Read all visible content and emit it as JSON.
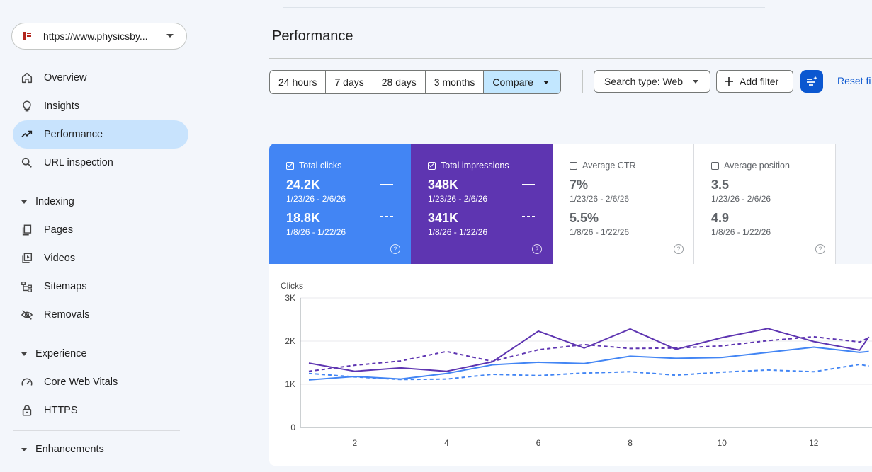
{
  "property": {
    "url": "https://www.physicsby..."
  },
  "nav": {
    "items": [
      {
        "label": "Overview",
        "icon": "home-icon"
      },
      {
        "label": "Insights",
        "icon": "lightbulb-icon"
      },
      {
        "label": "Performance",
        "icon": "trending-up-icon",
        "active": true
      },
      {
        "label": "URL inspection",
        "icon": "search-icon"
      }
    ],
    "indexing": {
      "label": "Indexing",
      "items": [
        {
          "label": "Pages"
        },
        {
          "label": "Videos"
        },
        {
          "label": "Sitemaps"
        },
        {
          "label": "Removals"
        }
      ]
    },
    "experience": {
      "label": "Experience",
      "items": [
        {
          "label": "Core Web Vitals"
        },
        {
          "label": "HTTPS"
        }
      ]
    },
    "enhancements": {
      "label": "Enhancements"
    }
  },
  "page": {
    "title": "Performance"
  },
  "toolbar": {
    "ranges": [
      "24 hours",
      "7 days",
      "28 days",
      "3 months"
    ],
    "compare_label": "Compare",
    "search_type": "Search type: Web",
    "add_filter": "Add filter",
    "reset": "Reset fi"
  },
  "metrics": [
    {
      "label": "Total clicks",
      "checked": true,
      "current": "24.2K",
      "current_range": "1/23/26 - 2/6/26",
      "previous": "18.8K",
      "previous_range": "1/8/26 - 1/22/26"
    },
    {
      "label": "Total impressions",
      "checked": true,
      "current": "348K",
      "current_range": "1/23/26 - 2/6/26",
      "previous": "341K",
      "previous_range": "1/8/26 - 1/22/26"
    },
    {
      "label": "Average CTR",
      "checked": false,
      "current": "7%",
      "current_range": "1/23/26 - 2/6/26",
      "previous": "5.5%",
      "previous_range": "1/8/26 - 1/22/26"
    },
    {
      "label": "Average position",
      "checked": false,
      "current": "3.5",
      "current_range": "1/23/26 - 2/6/26",
      "previous": "4.9",
      "previous_range": "1/8/26 - 1/22/26"
    }
  ],
  "colors": {
    "clicks": "#4285f4",
    "impressions": "#5e35b1",
    "accent": "#0b57d0",
    "active_nav": "#c8e3fd"
  },
  "chart_data": {
    "type": "line",
    "ylabel": "Clicks",
    "yticks": [
      "0",
      "1K",
      "2K",
      "3K"
    ],
    "ylim": [
      0,
      3000
    ],
    "xticks": [
      2,
      4,
      6,
      8,
      10,
      12
    ],
    "xlim": [
      1,
      13.2
    ],
    "grid": true,
    "series": [
      {
        "key": "clicks_current",
        "style": "solid",
        "color": "#4285f4",
        "x": [
          1,
          2,
          3,
          4,
          5,
          6,
          7,
          8,
          9,
          10,
          11,
          12,
          13,
          13.2
        ],
        "values": [
          1100,
          1180,
          1120,
          1250,
          1450,
          1510,
          1480,
          1650,
          1600,
          1620,
          1740,
          1860,
          1740,
          1760
        ]
      },
      {
        "key": "clicks_previous",
        "style": "dashed",
        "color": "#4285f4",
        "x": [
          1,
          2,
          3,
          4,
          5,
          6,
          7,
          8,
          9,
          10,
          11,
          12,
          13,
          13.2
        ],
        "values": [
          1250,
          1170,
          1110,
          1120,
          1230,
          1200,
          1260,
          1290,
          1210,
          1280,
          1330,
          1290,
          1460,
          1420
        ]
      },
      {
        "key": "impressions_current",
        "style": "solid",
        "color": "#5e35b1",
        "x": [
          1,
          2,
          3,
          4,
          5,
          6,
          7,
          8,
          9,
          10,
          11,
          12,
          13,
          13.2
        ],
        "values": [
          1490,
          1300,
          1380,
          1300,
          1520,
          2230,
          1840,
          2280,
          1810,
          2080,
          2290,
          1990,
          1790,
          2100
        ]
      },
      {
        "key": "impressions_previous",
        "style": "dashed",
        "color": "#5e35b1",
        "x": [
          1,
          2,
          3,
          4,
          5,
          6,
          7,
          8,
          9,
          10,
          11,
          12,
          13,
          13.2
        ],
        "values": [
          1300,
          1440,
          1540,
          1760,
          1530,
          1800,
          1920,
          1830,
          1840,
          1890,
          2010,
          2100,
          1980,
          2080
        ]
      }
    ]
  }
}
